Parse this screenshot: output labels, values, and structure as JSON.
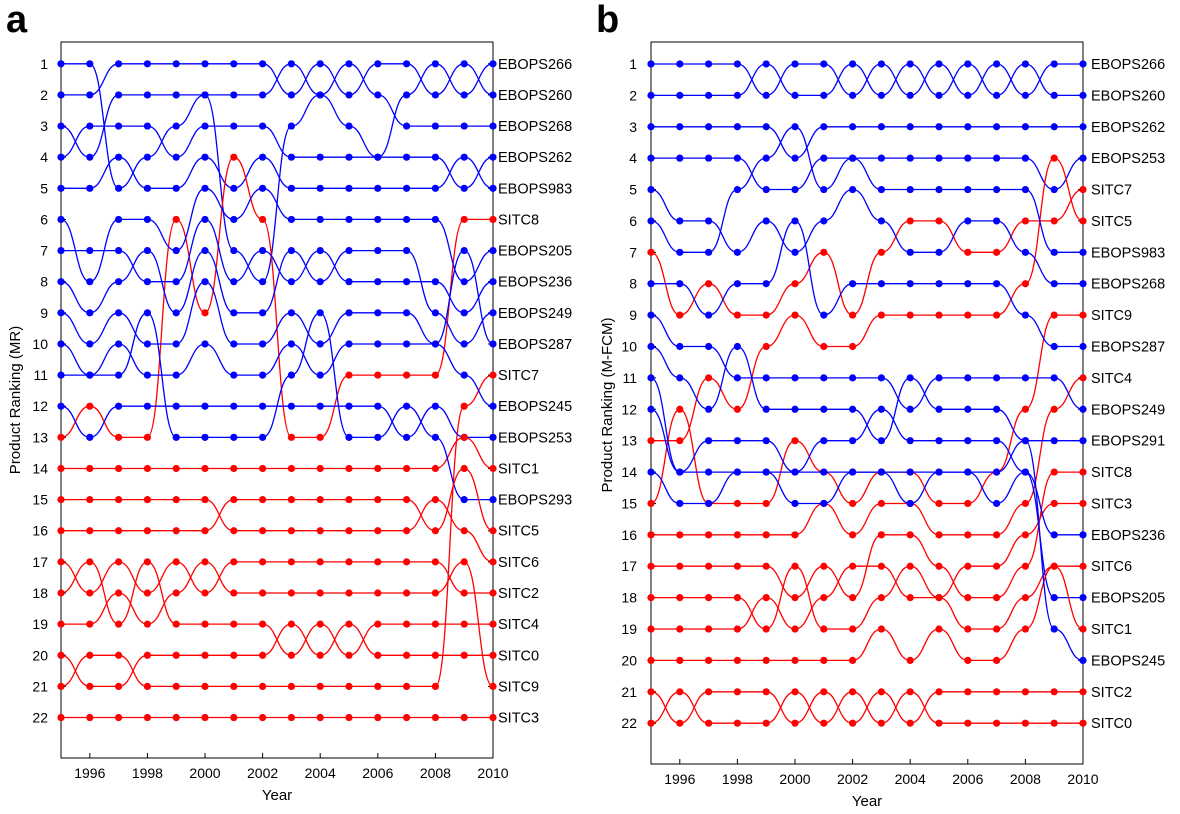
{
  "chart_data": [
    {
      "type": "line",
      "panel_label": "a",
      "xlabel": "Year",
      "ylabel": "Product Ranking (MR)",
      "xlim": [
        1995,
        2010
      ],
      "ylim": [
        0.3,
        23.3
      ],
      "y_reversed": true,
      "x_ticks": [
        "1996",
        "1998",
        "2000",
        "2002",
        "2004",
        "2006",
        "2008",
        "2010"
      ],
      "y_ticks": [
        "1",
        "2",
        "3",
        "4",
        "5",
        "6",
        "7",
        "8",
        "9",
        "10",
        "11",
        "12",
        "13",
        "14",
        "15",
        "16",
        "17",
        "18",
        "19",
        "20",
        "21",
        "22"
      ],
      "years": [
        1995,
        1996,
        1997,
        1998,
        1999,
        2000,
        2001,
        2002,
        2003,
        2004,
        2005,
        2006,
        2007,
        2008,
        2009,
        2010
      ],
      "series_colors": {
        "services": "#0000ff",
        "goods": "#ff0000"
      },
      "series": [
        {
          "name": "EBOPS266",
          "group": "services",
          "values": [
            1,
            1,
            5,
            4,
            3,
            2,
            7,
            8,
            3,
            2,
            3,
            4,
            2,
            1,
            2,
            1
          ]
        },
        {
          "name": "EBOPS260",
          "group": "services",
          "values": [
            2,
            2,
            1,
            1,
            1,
            1,
            1,
            1,
            2,
            1,
            2,
            1,
            1,
            2,
            1,
            2
          ]
        },
        {
          "name": "EBOPS268",
          "group": "services",
          "values": [
            3,
            4,
            2,
            2,
            2,
            2,
            2,
            2,
            1,
            2,
            1,
            2,
            3,
            3,
            3,
            3
          ]
        },
        {
          "name": "EBOPS262",
          "group": "services",
          "values": [
            4,
            3,
            3,
            3,
            4,
            3,
            3,
            3,
            4,
            4,
            4,
            4,
            4,
            4,
            5,
            4
          ]
        },
        {
          "name": "EBOPS983",
          "group": "services",
          "values": [
            5,
            5,
            4,
            5,
            5,
            4,
            5,
            4,
            5,
            5,
            5,
            5,
            5,
            5,
            4,
            5
          ]
        },
        {
          "name": "SITC8",
          "group": "goods",
          "values": [
            13,
            12,
            13,
            13,
            6,
            9,
            4,
            6,
            13,
            13,
            11,
            11,
            11,
            11,
            6,
            6
          ]
        },
        {
          "name": "EBOPS205",
          "group": "services",
          "values": [
            6,
            8,
            6,
            6,
            7,
            5,
            6,
            5,
            6,
            6,
            6,
            6,
            6,
            6,
            8,
            7
          ]
        },
        {
          "name": "EBOPS236",
          "group": "services",
          "values": [
            7,
            7,
            7,
            8,
            8,
            6,
            8,
            7,
            8,
            7,
            8,
            8,
            8,
            8,
            9,
            8
          ]
        },
        {
          "name": "EBOPS249",
          "group": "services",
          "values": [
            8,
            9,
            8,
            7,
            9,
            7,
            9,
            9,
            7,
            8,
            7,
            7,
            7,
            9,
            10,
            9
          ]
        },
        {
          "name": "EBOPS287",
          "group": "services",
          "values": [
            9,
            10,
            9,
            10,
            10,
            8,
            10,
            10,
            9,
            10,
            9,
            9,
            9,
            10,
            7,
            10
          ]
        },
        {
          "name": "SITC7",
          "group": "goods",
          "values": [
            21,
            20,
            20,
            21,
            21,
            21,
            21,
            21,
            21,
            21,
            21,
            21,
            21,
            21,
            12,
            11
          ]
        },
        {
          "name": "EBOPS245",
          "group": "services",
          "values": [
            10,
            11,
            10,
            11,
            11,
            10,
            11,
            11,
            10,
            11,
            10,
            10,
            10,
            10,
            11,
            12
          ]
        },
        {
          "name": "EBOPS253",
          "group": "services",
          "values": [
            12,
            13,
            12,
            12,
            12,
            12,
            12,
            12,
            12,
            12,
            12,
            12,
            13,
            12,
            13,
            13
          ]
        },
        {
          "name": "SITC1",
          "group": "goods",
          "values": [
            14,
            14,
            14,
            14,
            14,
            14,
            14,
            14,
            14,
            14,
            14,
            14,
            14,
            14,
            13,
            14
          ]
        },
        {
          "name": "EBOPS293",
          "group": "services",
          "values": [
            11,
            11,
            11,
            9,
            13,
            13,
            13,
            13,
            11,
            9,
            13,
            13,
            12,
            13,
            15,
            15
          ]
        },
        {
          "name": "SITC5",
          "group": "goods",
          "values": [
            16,
            16,
            16,
            16,
            16,
            16,
            15,
            15,
            15,
            15,
            15,
            15,
            15,
            16,
            14,
            16
          ]
        },
        {
          "name": "SITC6",
          "group": "goods",
          "values": [
            15,
            15,
            15,
            15,
            15,
            15,
            16,
            16,
            16,
            16,
            16,
            16,
            16,
            15,
            16,
            17
          ]
        },
        {
          "name": "SITC2",
          "group": "goods",
          "values": [
            17,
            18,
            17,
            18,
            17,
            18,
            17,
            17,
            17,
            17,
            17,
            17,
            17,
            17,
            18,
            18
          ]
        },
        {
          "name": "SITC4",
          "group": "goods",
          "values": [
            18,
            17,
            19,
            17,
            19,
            19,
            19,
            19,
            20,
            19,
            20,
            19,
            19,
            19,
            19,
            19
          ]
        },
        {
          "name": "SITC0",
          "group": "goods",
          "values": [
            20,
            21,
            21,
            20,
            20,
            20,
            20,
            20,
            19,
            20,
            19,
            20,
            20,
            20,
            20,
            20
          ]
        },
        {
          "name": "SITC9",
          "group": "goods",
          "values": [
            19,
            19,
            18,
            19,
            18,
            17,
            18,
            18,
            18,
            18,
            18,
            18,
            18,
            18,
            17,
            21
          ]
        },
        {
          "name": "SITC3",
          "group": "goods",
          "values": [
            22,
            22,
            22,
            22,
            22,
            22,
            22,
            22,
            22,
            22,
            22,
            22,
            22,
            22,
            22,
            22
          ]
        }
      ]
    },
    {
      "type": "line",
      "panel_label": "b",
      "xlabel": "Year",
      "ylabel": "Product Ranking (M-FCM)",
      "xlim": [
        1995,
        2010
      ],
      "ylim": [
        0.3,
        23.3
      ],
      "y_reversed": true,
      "x_ticks": [
        "1996",
        "1998",
        "2000",
        "2002",
        "2004",
        "2006",
        "2008",
        "2010"
      ],
      "y_ticks": [
        "1",
        "2",
        "3",
        "4",
        "5",
        "6",
        "7",
        "8",
        "9",
        "10",
        "11",
        "12",
        "13",
        "14",
        "15",
        "16",
        "17",
        "18",
        "19",
        "20",
        "21",
        "22"
      ],
      "years": [
        1995,
        1996,
        1997,
        1998,
        1999,
        2000,
        2001,
        2002,
        2003,
        2004,
        2005,
        2006,
        2007,
        2008,
        2009,
        2010
      ],
      "series_colors": {
        "services": "#0000ff",
        "goods": "#ff0000"
      },
      "series": [
        {
          "name": "EBOPS266",
          "group": "services",
          "values": [
            1,
            1,
            1,
            1,
            2,
            1,
            1,
            2,
            1,
            2,
            1,
            2,
            1,
            2,
            1,
            1
          ]
        },
        {
          "name": "EBOPS260",
          "group": "services",
          "values": [
            2,
            2,
            2,
            2,
            1,
            2,
            2,
            1,
            2,
            1,
            2,
            1,
            2,
            1,
            2,
            2
          ]
        },
        {
          "name": "EBOPS262",
          "group": "services",
          "values": [
            3,
            3,
            3,
            3,
            3,
            4,
            3,
            3,
            3,
            3,
            3,
            3,
            3,
            3,
            3,
            3
          ]
        },
        {
          "name": "EBOPS253",
          "group": "services",
          "values": [
            6,
            7,
            7,
            5,
            4,
            3,
            5,
            4,
            4,
            4,
            4,
            4,
            4,
            4,
            5,
            4
          ]
        },
        {
          "name": "SITC7",
          "group": "goods",
          "values": [
            7,
            9,
            8,
            9,
            9,
            8,
            7,
            9,
            7,
            6,
            6,
            7,
            7,
            6,
            6,
            5
          ]
        },
        {
          "name": "SITC5",
          "group": "goods",
          "values": [
            13,
            13,
            11,
            12,
            10,
            9,
            10,
            10,
            9,
            9,
            9,
            9,
            9,
            8,
            4,
            6
          ]
        },
        {
          "name": "EBOPS983",
          "group": "services",
          "values": [
            4,
            4,
            4,
            4,
            5,
            5,
            4,
            4,
            5,
            5,
            5,
            5,
            5,
            5,
            7,
            7
          ]
        },
        {
          "name": "EBOPS268",
          "group": "services",
          "values": [
            5,
            6,
            6,
            7,
            6,
            7,
            6,
            5,
            6,
            7,
            7,
            6,
            6,
            7,
            8,
            8
          ]
        },
        {
          "name": "SITC9",
          "group": "goods",
          "values": [
            15,
            12,
            15,
            15,
            15,
            13,
            14,
            15,
            14,
            14,
            15,
            15,
            14,
            12,
            9,
            9
          ]
        },
        {
          "name": "EBOPS287",
          "group": "services",
          "values": [
            8,
            8,
            9,
            8,
            8,
            6,
            9,
            8,
            8,
            8,
            8,
            8,
            8,
            9,
            10,
            10
          ]
        },
        {
          "name": "SITC4",
          "group": "goods",
          "values": [
            16,
            16,
            16,
            16,
            16,
            16,
            15,
            16,
            15,
            15,
            16,
            16,
            16,
            15,
            12,
            11
          ]
        },
        {
          "name": "EBOPS249",
          "group": "services",
          "values": [
            9,
            10,
            10,
            11,
            11,
            11,
            11,
            11,
            11,
            12,
            11,
            11,
            11,
            11,
            11,
            12
          ]
        },
        {
          "name": "EBOPS291",
          "group": "services",
          "values": [
            10,
            11,
            12,
            10,
            12,
            12,
            12,
            12,
            13,
            11,
            12,
            12,
            12,
            13,
            13,
            13
          ]
        },
        {
          "name": "SITC8",
          "group": "goods",
          "values": [
            17,
            17,
            17,
            17,
            17,
            18,
            17,
            18,
            16,
            16,
            17,
            18,
            18,
            17,
            14,
            14
          ]
        },
        {
          "name": "SITC3",
          "group": "goods",
          "values": [
            19,
            19,
            19,
            19,
            18,
            19,
            18,
            17,
            17,
            18,
            18,
            17,
            17,
            16,
            15,
            15
          ]
        },
        {
          "name": "EBOPS236",
          "group": "services",
          "values": [
            11,
            14,
            13,
            13,
            13,
            14,
            13,
            13,
            12,
            13,
            13,
            13,
            13,
            14,
            16,
            16
          ]
        },
        {
          "name": "SITC6",
          "group": "goods",
          "values": [
            18,
            18,
            18,
            18,
            19,
            17,
            19,
            19,
            18,
            17,
            18,
            19,
            19,
            18,
            17,
            17
          ]
        },
        {
          "name": "EBOPS205",
          "group": "services",
          "values": [
            12,
            14,
            14,
            14,
            14,
            15,
            15,
            14,
            14,
            15,
            14,
            14,
            15,
            14,
            18,
            18
          ]
        },
        {
          "name": "SITC1",
          "group": "goods",
          "values": [
            20,
            20,
            20,
            20,
            20,
            20,
            20,
            20,
            19,
            20,
            19,
            20,
            20,
            19,
            17,
            19
          ]
        },
        {
          "name": "EBOPS245",
          "group": "services",
          "values": [
            14,
            15,
            15,
            14,
            14,
            14,
            14,
            14,
            14,
            14,
            14,
            14,
            14,
            13,
            19,
            20
          ]
        },
        {
          "name": "SITC2",
          "group": "goods",
          "values": [
            21,
            22,
            21,
            21,
            21,
            22,
            21,
            22,
            21,
            22,
            21,
            21,
            21,
            21,
            21,
            21
          ]
        },
        {
          "name": "SITC0",
          "group": "goods",
          "values": [
            22,
            21,
            22,
            22,
            22,
            21,
            22,
            21,
            22,
            21,
            22,
            22,
            22,
            22,
            22,
            22
          ]
        }
      ]
    }
  ]
}
